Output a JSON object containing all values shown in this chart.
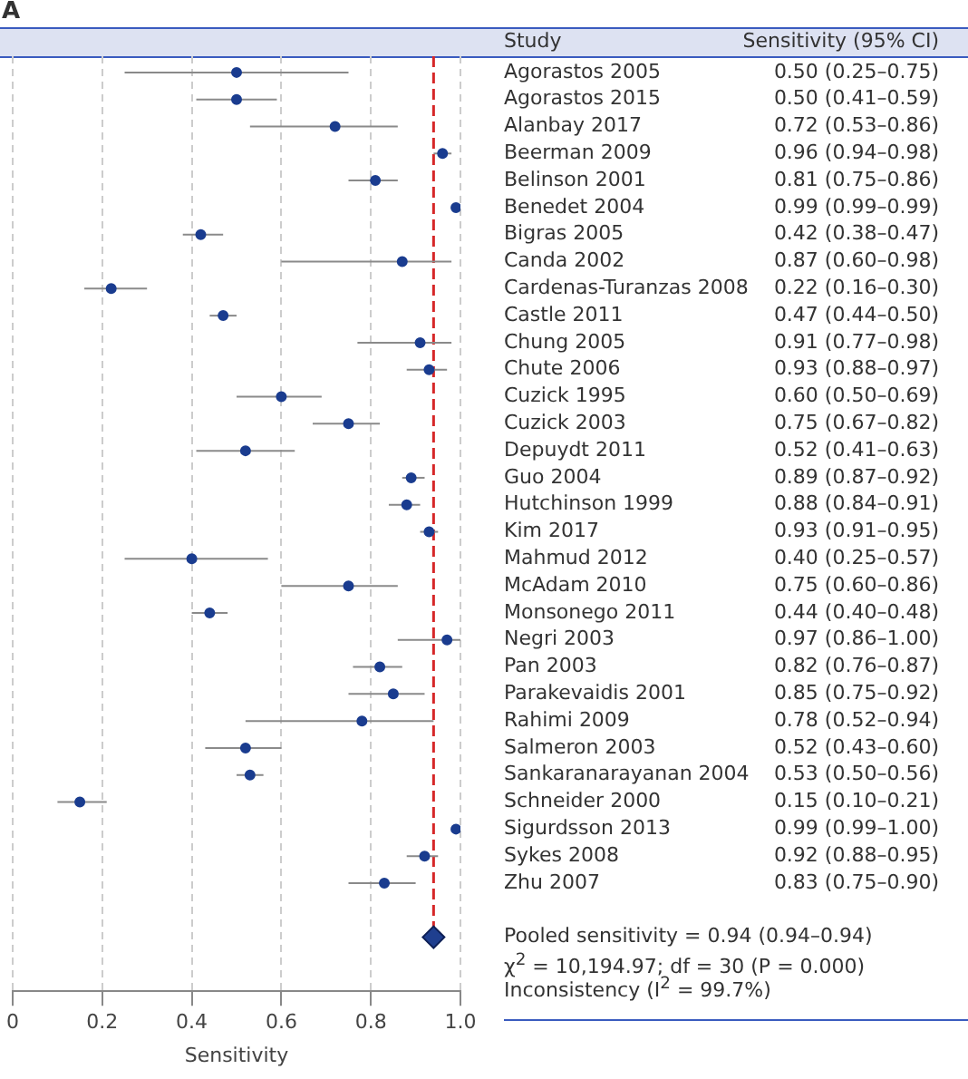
{
  "chart_data": {
    "type": "scatter",
    "orientation": "horizontal",
    "xlabel": "Sensitivity",
    "xlim": [
      0,
      1
    ],
    "xticks": [
      0,
      0.2,
      0.4,
      0.6,
      0.8,
      {
        "value": 1,
        "label": "1.0"
      }
    ],
    "grid": "x",
    "legend": false,
    "marker": "circle",
    "categories": [
      "Agorastos 2005",
      "Agorastos 2015",
      "Alanbay 2017",
      "Beerman 2009",
      "Belinson 2001",
      "Benedet 2004",
      "Bigras 2005",
      "Canda 2002",
      "Cardenas-Turanzas 2008",
      "Castle 2011",
      "Chung 2005",
      "Chute 2006",
      "Cuzick 1995",
      "Cuzick 2003",
      "Depuydt 2011",
      "Guo 2004",
      "Hutchinson 1999",
      "Kim 2017",
      "Mahmud 2012",
      "McAdam 2010",
      "Monsonego 2011",
      "Negri 2003",
      "Pan 2003",
      "Parakevaidis 2001",
      "Rahimi 2009",
      "Salmeron 2003",
      "Sankaranarayanan 2004",
      "Schneider 2000",
      "Sigurdsson 2013",
      "Sykes 2008",
      "Zhu 2007",
      null,
      "Pooled sensitivity = 0.94 (0.94–0.94)"
    ],
    "series": [
      {
        "color": "#1a3c8f",
        "values": [
          0.5,
          0.5,
          0.72,
          0.96,
          0.81,
          0.99,
          0.42,
          0.87,
          0.22,
          0.47,
          0.91,
          0.93,
          0.6,
          0.75,
          0.52,
          0.89,
          0.88,
          0.93,
          0.4,
          0.75,
          0.44,
          0.97,
          0.82,
          0.85,
          0.78,
          0.52,
          0.53,
          0.15,
          0.99,
          0.92,
          0.83,
          null,
          null
        ],
        "errors": [
          [
            0.25,
            0.75
          ],
          [
            0.41,
            0.59
          ],
          [
            0.53,
            0.86
          ],
          [
            0.94,
            0.98
          ],
          [
            0.75,
            0.86
          ],
          [
            0.99,
            0.99
          ],
          [
            0.38,
            0.47
          ],
          [
            0.6,
            0.98
          ],
          [
            0.16,
            0.3
          ],
          [
            0.44,
            0.5
          ],
          [
            0.77,
            0.98
          ],
          [
            0.88,
            0.97
          ],
          [
            0.5,
            0.69
          ],
          [
            0.67,
            0.82
          ],
          [
            0.41,
            0.63
          ],
          [
            0.87,
            0.92
          ],
          [
            0.84,
            0.91
          ],
          [
            0.91,
            0.95
          ],
          [
            0.25,
            0.57
          ],
          [
            0.6,
            0.86
          ],
          [
            0.4,
            0.48
          ],
          [
            0.86,
            1.0
          ],
          [
            0.76,
            0.87
          ],
          [
            0.75,
            0.92
          ],
          [
            0.52,
            0.94
          ],
          [
            0.43,
            0.6
          ],
          [
            0.5,
            0.56
          ],
          [
            0.1,
            0.21
          ],
          [
            0.99,
            1.0
          ],
          [
            0.88,
            0.95
          ],
          [
            0.75,
            0.9
          ],
          null,
          null
        ],
        "value_labels": [
          "0.50 (0.25–0.75)",
          "0.50 (0.41–0.59)",
          "0.72 (0.53–0.86)",
          "0.96 (0.94–0.98)",
          "0.81 (0.75–0.86)",
          "0.99 (0.99–0.99)",
          "0.42 (0.38–0.47)",
          "0.87 (0.60–0.98)",
          "0.22 (0.16–0.30)",
          "0.47 (0.44–0.50)",
          "0.91 (0.77–0.98)",
          "0.93 (0.88–0.97)",
          "0.60 (0.50–0.69)",
          "0.75 (0.67–0.82)",
          "0.52 (0.41–0.63)",
          "0.89 (0.87–0.92)",
          "0.88 (0.84–0.91)",
          "0.93 (0.91–0.95)",
          "0.40 (0.25–0.57)",
          "0.75 (0.60–0.86)",
          "0.44 (0.40–0.48)",
          "0.97 (0.86–1.00)",
          "0.82 (0.76–0.87)",
          "0.85 (0.75–0.92)",
          "0.78 (0.52–0.94)",
          "0.52 (0.43–0.60)",
          "0.53 (0.50–0.56)",
          "0.15 (0.10–0.21)",
          "0.99 (0.99–1.00)",
          "0.92 (0.88–0.95)",
          "0.83 (0.75–0.90)",
          null,
          null
        ]
      },
      {
        "color": "#1f3f8f",
        "marker": "diamond",
        "values": [
          null,
          null,
          null,
          null,
          null,
          null,
          null,
          null,
          null,
          null,
          null,
          null,
          null,
          null,
          null,
          null,
          null,
          null,
          null,
          null,
          null,
          null,
          null,
          null,
          null,
          null,
          null,
          null,
          null,
          null,
          null,
          null,
          0.94
        ]
      }
    ],
    "ref_lines": [
      {
        "axis": "x",
        "value": 0.94,
        "color": "#d62728",
        "line_style": "dashed"
      }
    ],
    "annotations": [
      "A",
      "Study",
      "Sensitivity (95% CI)",
      "χ$^{2}$ = 10,194.97; df = 30 (P = 0.000)",
      "Inconsistency (I$^{2}$ = 99.7%)"
    ]
  }
}
